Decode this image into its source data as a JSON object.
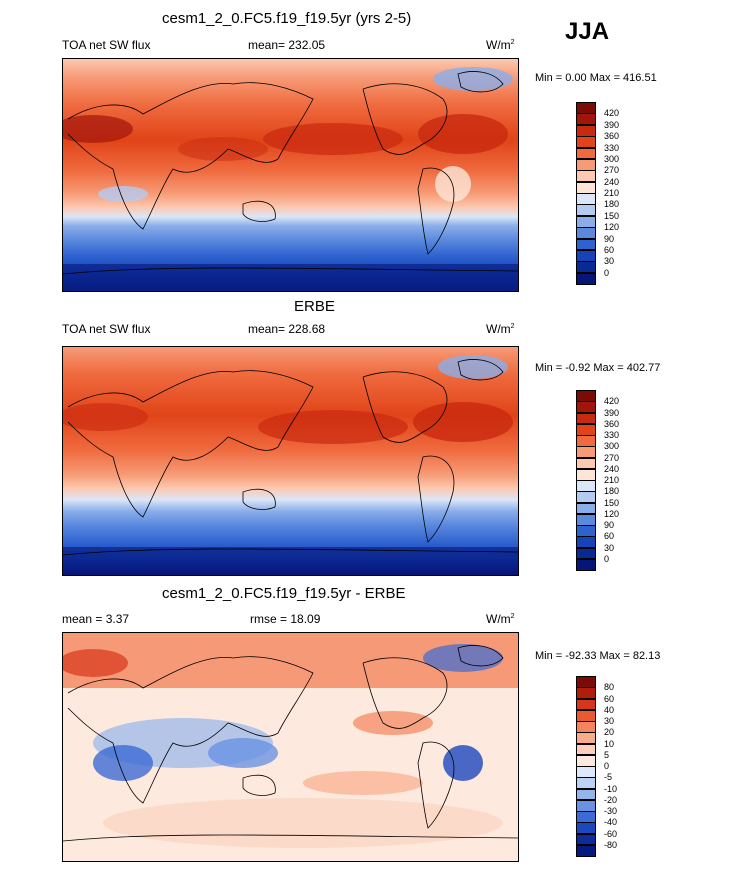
{
  "season": "JJA",
  "panels": [
    {
      "title": "cesm1_2_0.FC5.f19_f19.5yr (yrs 2-5)",
      "left_label": "TOA net SW flux",
      "center_label": "mean= 232.05",
      "units_base": "W/m",
      "units_sup": "2",
      "stats": "Min =   0.00 Max = 416.51",
      "colorbar": {
        "labels": [
          "420",
          "390",
          "360",
          "330",
          "300",
          "270",
          "240",
          "210",
          "180",
          "150",
          "120",
          "90",
          "60",
          "30",
          "0"
        ],
        "colors": [
          "#7a0b05",
          "#a3150b",
          "#c9290f",
          "#e04418",
          "#ef6a3e",
          "#f79b77",
          "#fcc9b1",
          "#fde6d8",
          "#dbe6f8",
          "#b4cbf1",
          "#8aaeea",
          "#5b89de",
          "#2e62cf",
          "#1743b8",
          "#0a2a93",
          "#051678"
        ]
      }
    },
    {
      "title": "ERBE",
      "left_label": "TOA net SW flux",
      "center_label": "mean= 228.68",
      "units_base": "W/m",
      "units_sup": "2",
      "stats": "Min =  -0.92 Max = 402.77",
      "colorbar": {
        "labels": [
          "420",
          "390",
          "360",
          "330",
          "300",
          "270",
          "240",
          "210",
          "180",
          "150",
          "120",
          "90",
          "60",
          "30",
          "0"
        ],
        "colors": [
          "#7a0b05",
          "#a3150b",
          "#c9290f",
          "#e04418",
          "#ef6a3e",
          "#f79b77",
          "#fcc9b1",
          "#fde6d8",
          "#dbe6f8",
          "#b4cbf1",
          "#8aaeea",
          "#5b89de",
          "#2e62cf",
          "#1743b8",
          "#0a2a93",
          "#051678"
        ]
      }
    },
    {
      "title": "cesm1_2_0.FC5.f19_f19.5yr - ERBE",
      "left_label": "mean =   3.37",
      "center_label": "rmse =  18.09",
      "units_base": "W/m",
      "units_sup": "2",
      "stats": "Min = -92.33 Max =  82.13",
      "colorbar": {
        "labels": [
          "80",
          "60",
          "40",
          "30",
          "20",
          "10",
          "5",
          "0",
          "-5",
          "-10",
          "-20",
          "-30",
          "-40",
          "-60",
          "-80"
        ],
        "colors": [
          "#7a0b05",
          "#b01d0d",
          "#d8351a",
          "#ea5a30",
          "#f4845d",
          "#f9ac8d",
          "#fcd0bc",
          "#fde9dd",
          "#dde9fa",
          "#bcd2f4",
          "#94b5ec",
          "#6a92e2",
          "#3c6ad6",
          "#1c47bf",
          "#0c2c9c",
          "#041a80"
        ]
      }
    }
  ]
}
